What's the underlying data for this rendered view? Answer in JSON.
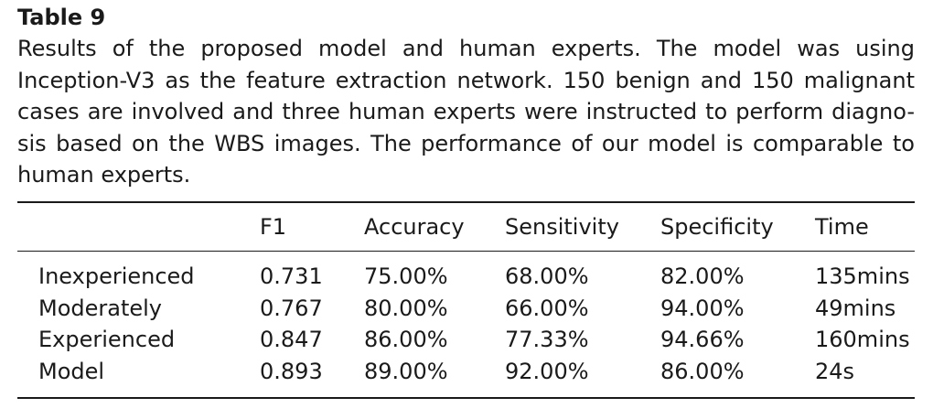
{
  "table": {
    "label": "Table 9",
    "caption_lines": [
      "Results of the proposed model and human experts. The model was using",
      "Inception-V3 as the feature extraction network. 150 benign and 150 malignant",
      "cases are involved and three human experts were instructed to perform diagno-",
      "sis based on the WBS images. The performance of our model is comparable to",
      "human experts."
    ],
    "headers": [
      "",
      "F1",
      "Accuracy",
      "Sensitivity",
      "Specificity",
      "Time"
    ],
    "rows": [
      [
        "Inexperienced",
        "0.731",
        "75.00%",
        "68.00%",
        "82.00%",
        "135mins"
      ],
      [
        "Moderately",
        "0.767",
        "80.00%",
        "66.00%",
        "94.00%",
        "49mins"
      ],
      [
        "Experienced",
        "0.847",
        "86.00%",
        "77.33%",
        "94.66%",
        "160mins"
      ],
      [
        "Model",
        "0.893",
        "89.00%",
        "92.00%",
        "86.00%",
        "24s"
      ]
    ]
  }
}
